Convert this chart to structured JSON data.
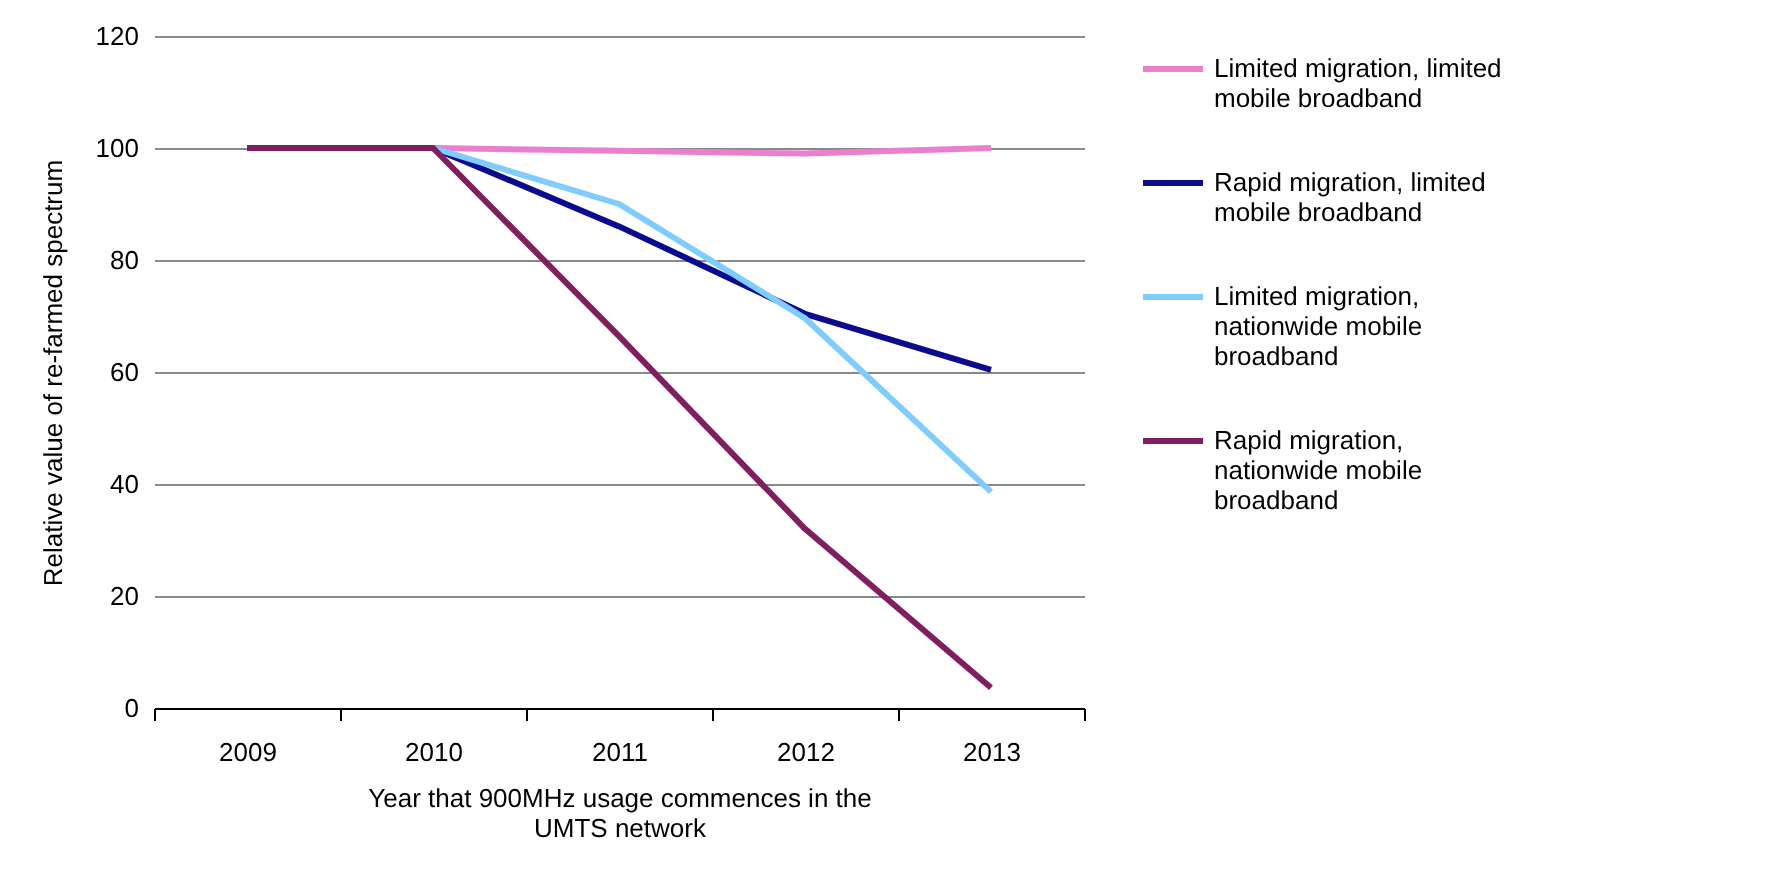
{
  "chart_data": {
    "type": "line",
    "xlabel": "Year that 900MHz usage commences in the UMTS network",
    "ylabel": "Relative value of re-farmed spectrum",
    "categories": [
      "2009",
      "2010",
      "2011",
      "2012",
      "2013"
    ],
    "series": [
      {
        "name": "Limited migration, limited mobile broadband",
        "color": "#ea7fd0",
        "values": [
          null,
          100,
          99.5,
          99,
          100
        ]
      },
      {
        "name": "Rapid migration, limited mobile broadband",
        "color": "#0b0b8e",
        "values": [
          null,
          100,
          86,
          70.4,
          60.4
        ]
      },
      {
        "name": "Limited migration, nationwide mobile broadband",
        "color": "#80ccff",
        "values": [
          null,
          100,
          90,
          69.6,
          38.6
        ]
      },
      {
        "name": "Rapid migration, nationwide mobile broadband",
        "color": "#7f1f5f",
        "values": [
          100,
          100,
          66.4,
          32,
          3.6
        ]
      }
    ],
    "ylim": [
      0,
      120
    ],
    "yticks": [
      0,
      20,
      40,
      60,
      80,
      100,
      120
    ],
    "grid": "y",
    "legend": "right"
  }
}
